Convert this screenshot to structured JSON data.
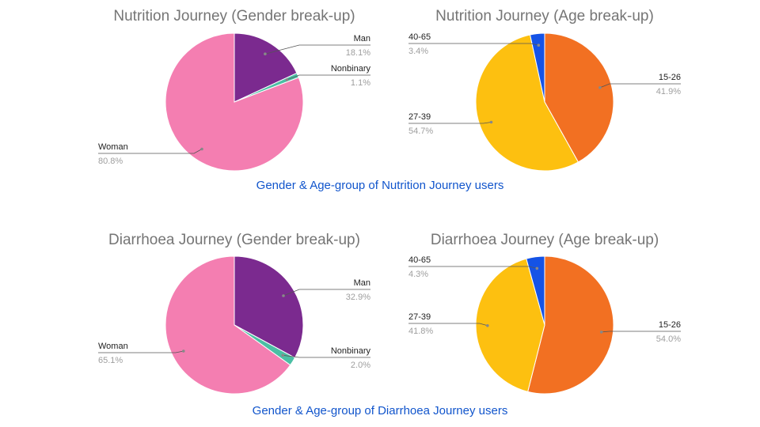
{
  "colors": {
    "man": "#7b2a8f",
    "nonbinary": "#4bbfa4",
    "woman": "#f47eb1",
    "age_15_26": "#f27022",
    "age_27_39": "#fdc010",
    "age_40_65": "#1553e6",
    "caption": "#1155cc",
    "title": "#757575"
  },
  "captions": {
    "nutrition": "Gender & Age-group of Nutrition Journey users",
    "diarrhoea": "Gender & Age-group of Diarrhoea Journey users"
  },
  "chart_data": [
    {
      "type": "pie",
      "title": "Nutrition Journey (Gender break-up)",
      "slices": [
        {
          "label": "Man",
          "pct_label": "18.1%",
          "value": 18.1,
          "color": "#7b2a8f"
        },
        {
          "label": "Nonbinary",
          "pct_label": "1.1%",
          "value": 1.1,
          "color": "#4bbfa4"
        },
        {
          "label": "Woman",
          "pct_label": "80.8%",
          "value": 80.8,
          "color": "#f47eb1"
        }
      ]
    },
    {
      "type": "pie",
      "title": "Nutrition Journey (Age break-up)",
      "slices": [
        {
          "label": "15-26",
          "pct_label": "41.9%",
          "value": 41.9,
          "color": "#f27022"
        },
        {
          "label": "27-39",
          "pct_label": "54.7%",
          "value": 54.7,
          "color": "#fdc010"
        },
        {
          "label": "40-65",
          "pct_label": "3.4%",
          "value": 3.4,
          "color": "#1553e6"
        }
      ]
    },
    {
      "type": "pie",
      "title": "Diarrhoea Journey (Gender break-up)",
      "slices": [
        {
          "label": "Man",
          "pct_label": "32.9%",
          "value": 32.9,
          "color": "#7b2a8f"
        },
        {
          "label": "Nonbinary",
          "pct_label": "2.0%",
          "value": 2.0,
          "color": "#4bbfa4"
        },
        {
          "label": "Woman",
          "pct_label": "65.1%",
          "value": 65.1,
          "color": "#f47eb1"
        }
      ]
    },
    {
      "type": "pie",
      "title": "Diarrhoea Journey (Age break-up)",
      "slices": [
        {
          "label": "15-26",
          "pct_label": "54.0%",
          "value": 54.0,
          "color": "#f27022"
        },
        {
          "label": "27-39",
          "pct_label": "41.8%",
          "value": 41.8,
          "color": "#fdc010"
        },
        {
          "label": "40-65",
          "pct_label": "4.3%",
          "value": 4.3,
          "color": "#1553e6"
        }
      ]
    }
  ]
}
